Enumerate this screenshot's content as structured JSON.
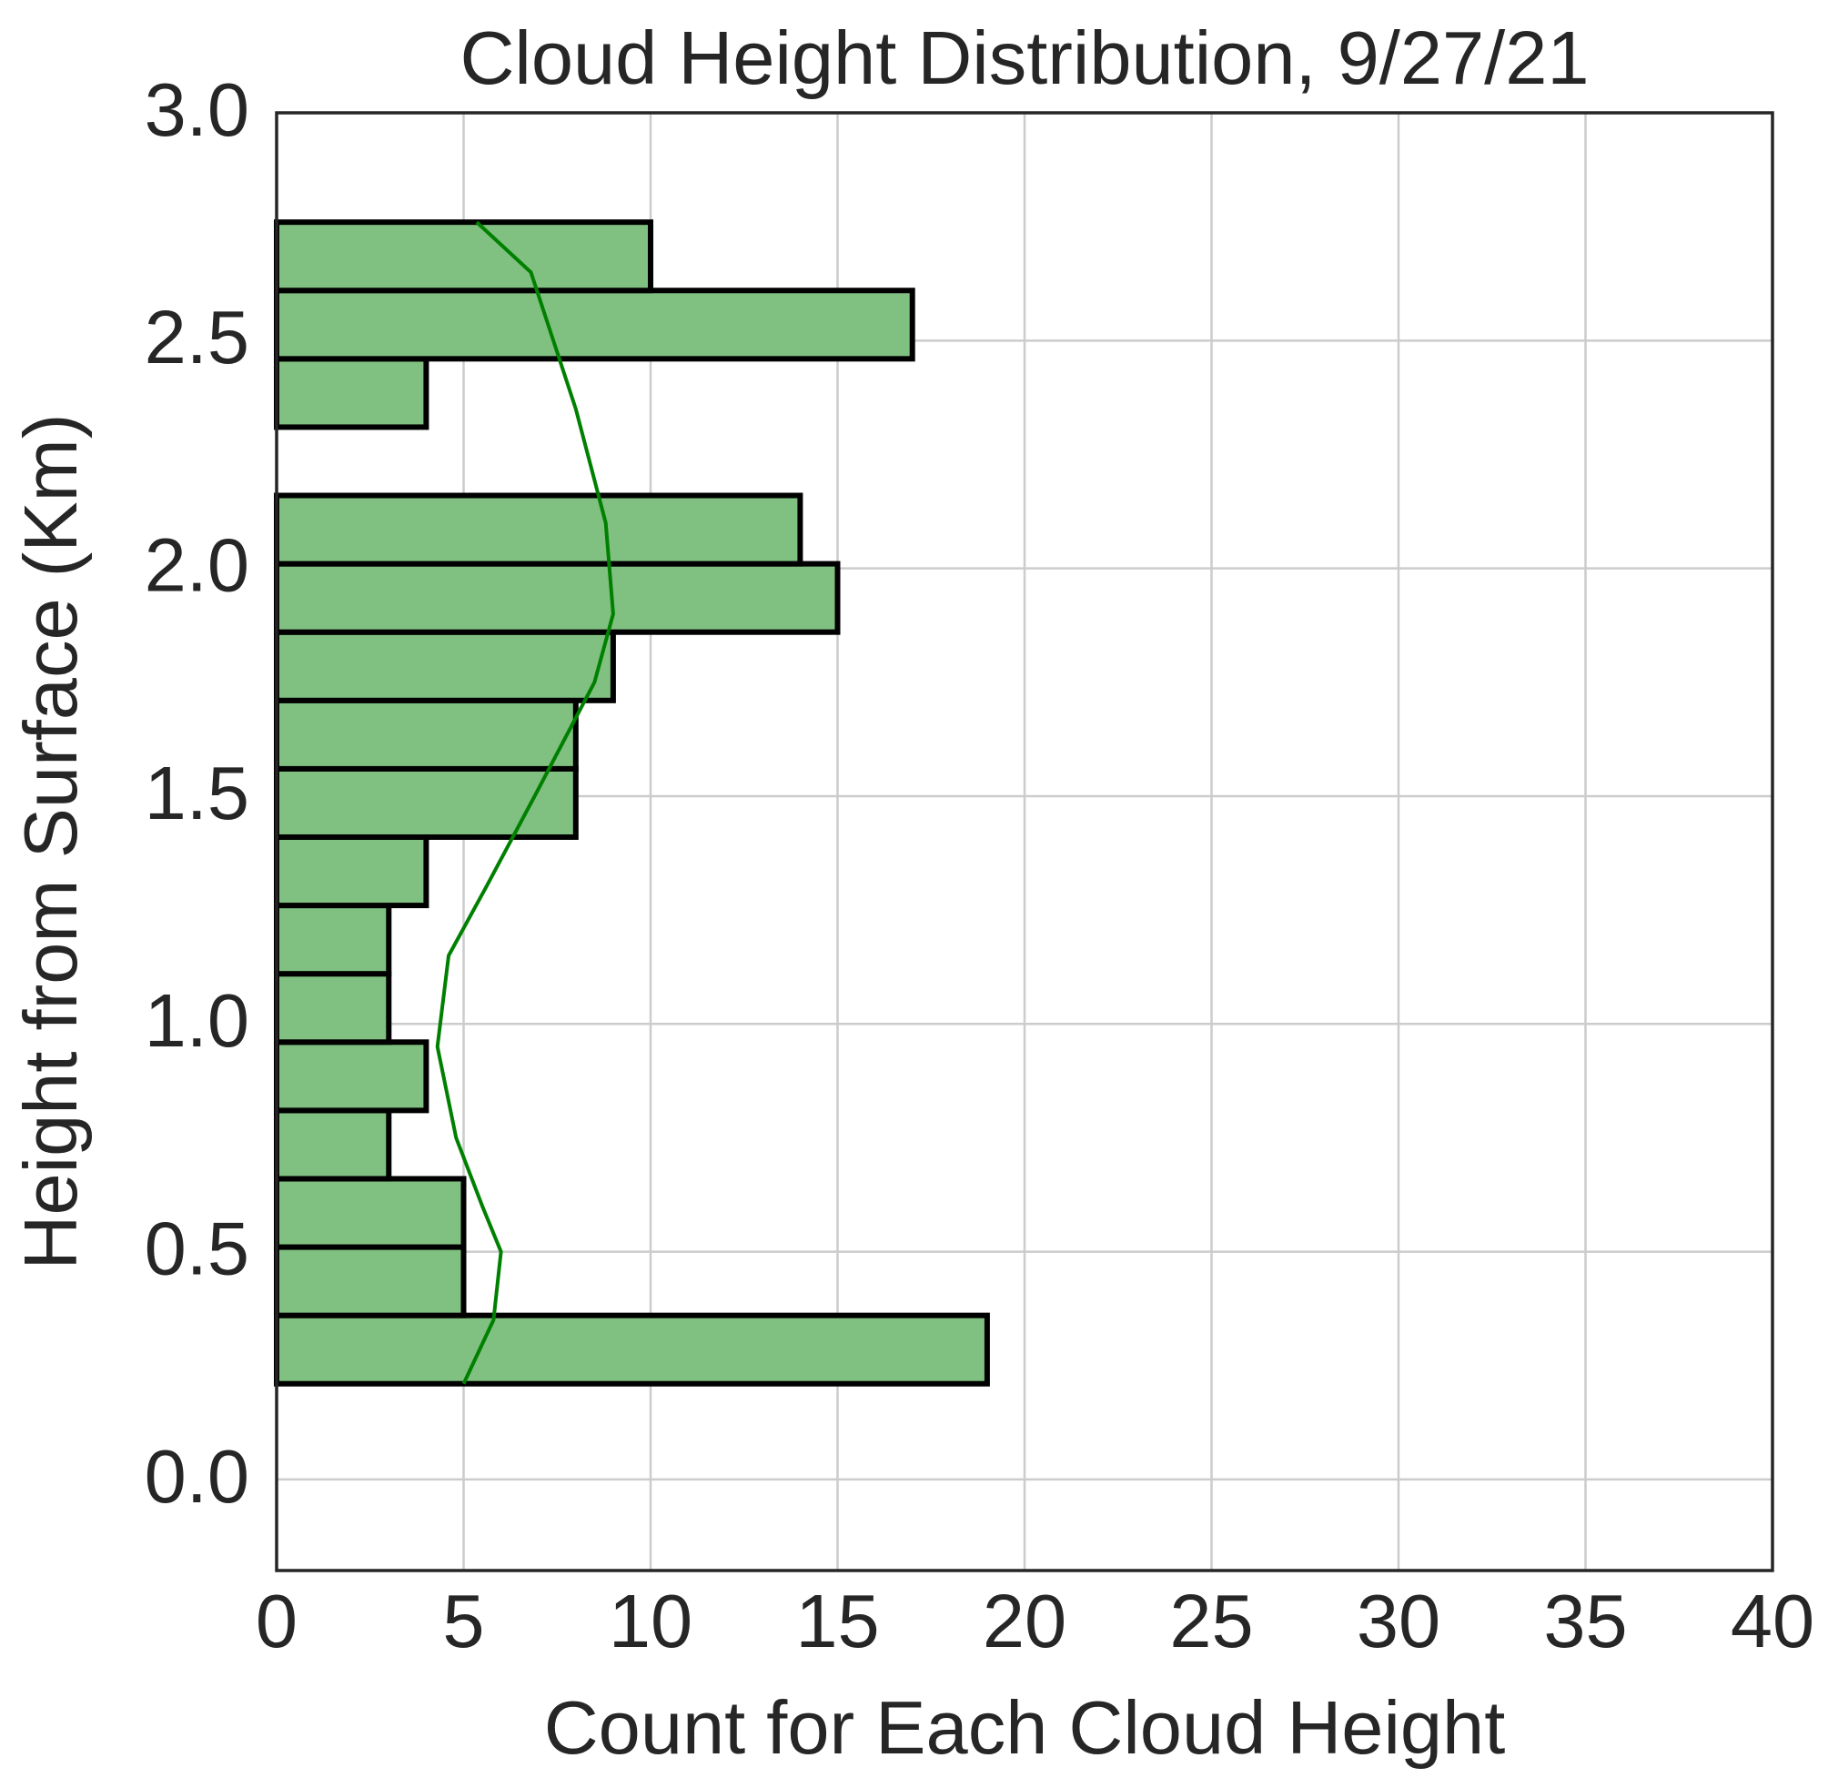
{
  "chart_data": {
    "type": "histogram",
    "orientation": "horizontal",
    "title": "Cloud Height Distribution, 9/27/21",
    "x_label": "Count for Each Cloud Height",
    "y_label": "Height from Surface (Km)",
    "bins": [
      0.21,
      0.36,
      0.51,
      0.66,
      0.81,
      0.96,
      1.11,
      1.26,
      1.41,
      1.56,
      1.71,
      1.86,
      2.01,
      2.16,
      2.31,
      2.46,
      2.61,
      2.76
    ],
    "values": [
      19,
      5,
      5,
      3,
      4,
      3,
      3,
      4,
      8,
      8,
      9,
      15,
      14,
      0,
      4,
      17,
      10
    ],
    "color": "#80c080",
    "edgecolor": "#000000",
    "kde": {
      "color": "#008000",
      "counts": [
        5.0,
        5.8,
        6.0,
        5.5,
        4.8,
        4.3,
        4.6,
        5.6,
        6.9,
        8.5,
        9.0,
        8.8,
        8.0,
        7.4,
        6.8,
        5.35
      ],
      "heights": [
        0.21,
        0.35,
        0.5,
        0.6,
        0.75,
        0.95,
        1.15,
        1.3,
        1.5,
        1.75,
        1.9,
        2.1,
        2.35,
        2.5,
        2.65,
        2.76
      ]
    },
    "xlim": [
      0,
      40
    ],
    "xticks": [
      0,
      5,
      10,
      15,
      20,
      25,
      30,
      35,
      40
    ],
    "ylim": [
      -0.2,
      3.0
    ],
    "yticks": [
      {
        "value": 0,
        "label": "0.0"
      },
      {
        "value": 0.5,
        "label": "0.5"
      },
      {
        "value": 1,
        "label": "1.0"
      },
      {
        "value": 1.5,
        "label": "1.5"
      },
      {
        "value": 2,
        "label": "2.0"
      },
      {
        "value": 2.5,
        "label": "2.5"
      },
      {
        "value": 3,
        "label": "3.0"
      }
    ],
    "grid": true
  }
}
